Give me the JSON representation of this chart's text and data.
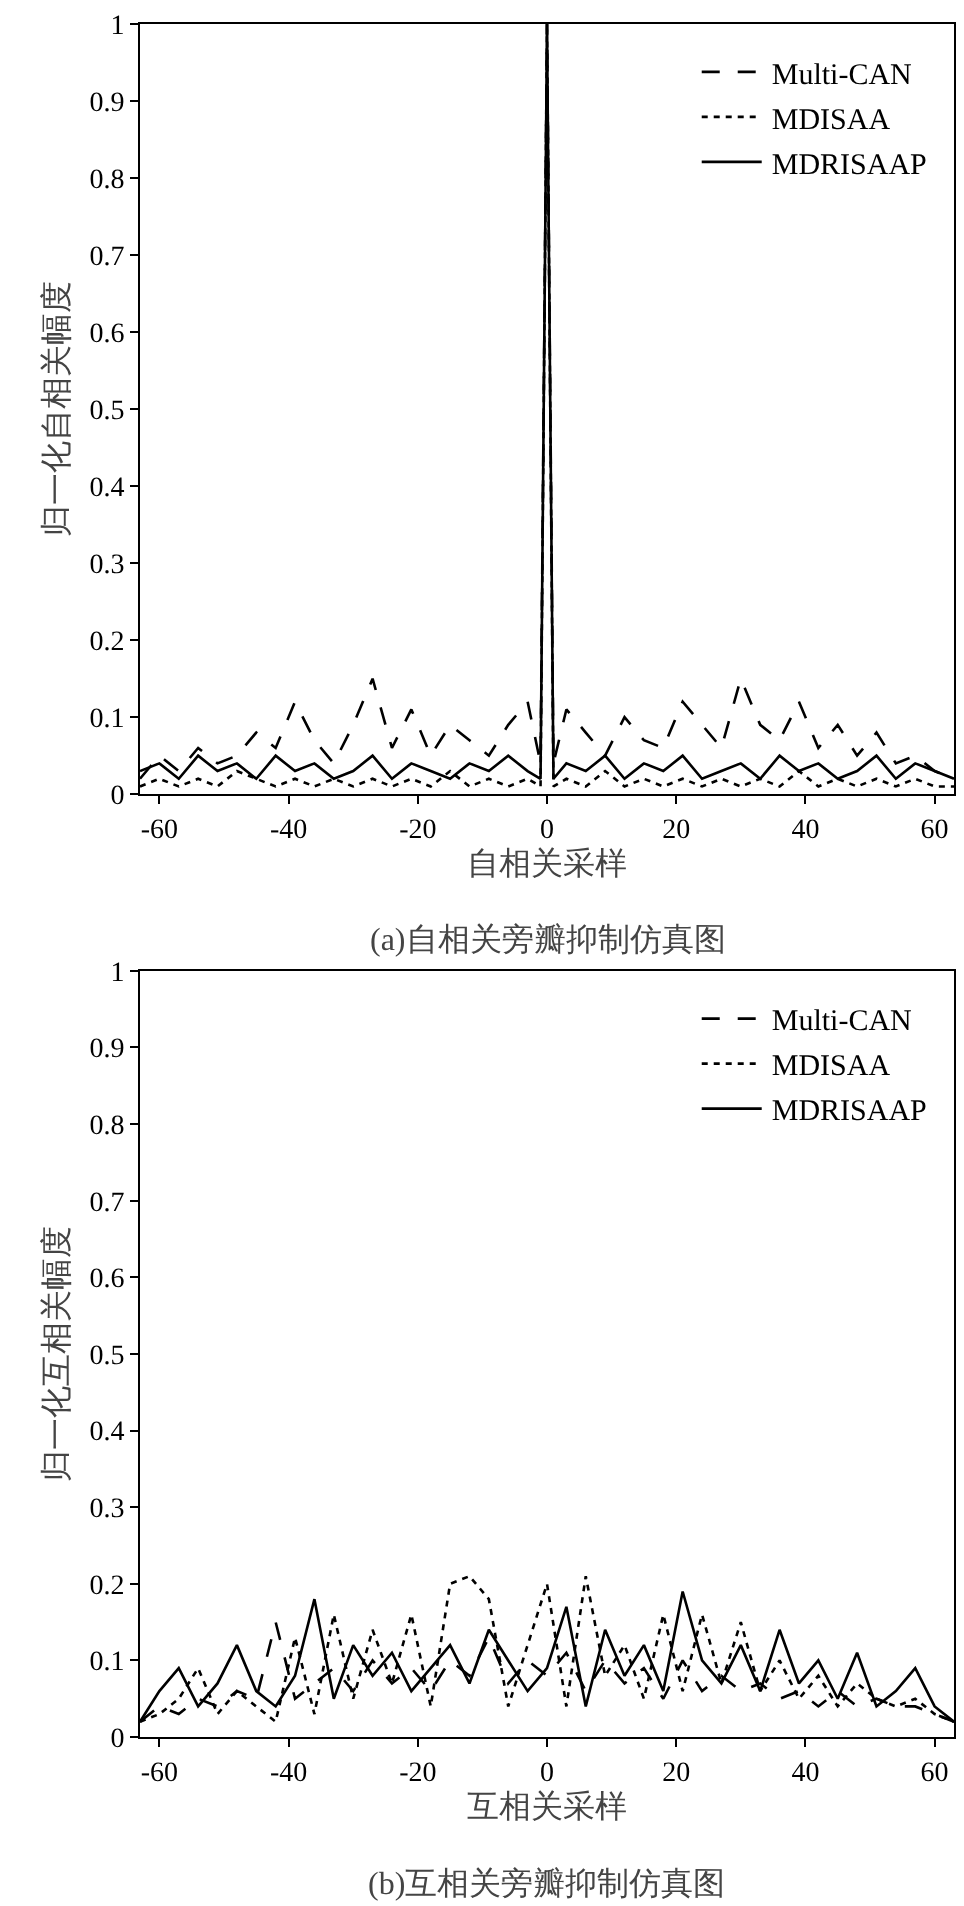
{
  "chart_data": [
    {
      "type": "line",
      "xlabel": "自相关采样",
      "ylabel": "归一化自相关幅度",
      "annotations": [
        "(a)自相关旁瓣抑制仿真图"
      ],
      "legend": "top right",
      "xlim": [
        -63,
        63
      ],
      "ylim": [
        0,
        1
      ],
      "xticks": [
        -60,
        -40,
        -20,
        0,
        20,
        40,
        60
      ],
      "yticks": [
        0,
        0.1,
        0.2,
        0.3,
        0.4,
        0.5,
        0.6,
        0.7,
        0.8,
        0.9,
        1
      ],
      "x": [
        -63,
        -60,
        -57,
        -54,
        -51,
        -48,
        -45,
        -42,
        -39,
        -36,
        -33,
        -30,
        -27,
        -24,
        -21,
        -18,
        -15,
        -12,
        -9,
        -6,
        -3,
        -1,
        0,
        1,
        3,
        6,
        9,
        12,
        15,
        18,
        21,
        24,
        27,
        30,
        33,
        36,
        39,
        42,
        45,
        48,
        51,
        54,
        57,
        60,
        63
      ],
      "series": [
        {
          "name": "Multi-CAN",
          "color": "#000000",
          "line_style": "dashed",
          "values": [
            0.02,
            0.05,
            0.03,
            0.06,
            0.04,
            0.05,
            0.08,
            0.06,
            0.12,
            0.07,
            0.04,
            0.09,
            0.15,
            0.06,
            0.11,
            0.05,
            0.09,
            0.07,
            0.05,
            0.09,
            0.12,
            0.04,
            1,
            0.04,
            0.11,
            0.08,
            0.05,
            0.1,
            0.07,
            0.06,
            0.12,
            0.09,
            0.06,
            0.15,
            0.09,
            0.07,
            0.12,
            0.06,
            0.09,
            0.05,
            0.08,
            0.04,
            0.05,
            0.03,
            0.02
          ]
        },
        {
          "name": "MDISAA",
          "color": "#000000",
          "line_style": "dotted",
          "values": [
            0.01,
            0.02,
            0.01,
            0.02,
            0.01,
            0.03,
            0.02,
            0.01,
            0.02,
            0.01,
            0.02,
            0.01,
            0.02,
            0.01,
            0.02,
            0.01,
            0.03,
            0.01,
            0.02,
            0.01,
            0.02,
            0.01,
            1,
            0.01,
            0.02,
            0.01,
            0.03,
            0.01,
            0.02,
            0.01,
            0.02,
            0.01,
            0.02,
            0.01,
            0.02,
            0.01,
            0.03,
            0.01,
            0.02,
            0.01,
            0.02,
            0.01,
            0.02,
            0.01,
            0.01
          ]
        },
        {
          "name": "MDRISAAP",
          "color": "#000000",
          "line_style": "solid",
          "values": [
            0.03,
            0.04,
            0.02,
            0.05,
            0.03,
            0.04,
            0.02,
            0.05,
            0.03,
            0.04,
            0.02,
            0.03,
            0.05,
            0.02,
            0.04,
            0.03,
            0.02,
            0.04,
            0.03,
            0.05,
            0.03,
            0.02,
            1,
            0.02,
            0.04,
            0.03,
            0.05,
            0.02,
            0.04,
            0.03,
            0.05,
            0.02,
            0.03,
            0.04,
            0.02,
            0.05,
            0.03,
            0.04,
            0.02,
            0.03,
            0.05,
            0.02,
            0.04,
            0.03,
            0.02
          ]
        }
      ]
    },
    {
      "type": "line",
      "xlabel": "互相关采样",
      "ylabel": "归一化互相关幅度",
      "annotations": [
        "(b)互相关旁瓣抑制仿真图"
      ],
      "legend": "top right",
      "xlim": [
        -63,
        63
      ],
      "ylim": [
        0,
        1
      ],
      "xticks": [
        -60,
        -40,
        -20,
        0,
        20,
        40,
        60
      ],
      "yticks": [
        0,
        0.1,
        0.2,
        0.3,
        0.4,
        0.5,
        0.6,
        0.7,
        0.8,
        0.9,
        1
      ],
      "x": [
        -63,
        -60,
        -57,
        -54,
        -51,
        -48,
        -45,
        -42,
        -39,
        -36,
        -33,
        -30,
        -27,
        -24,
        -21,
        -18,
        -15,
        -12,
        -9,
        -6,
        -3,
        0,
        3,
        6,
        9,
        12,
        15,
        18,
        21,
        24,
        27,
        30,
        33,
        36,
        39,
        42,
        45,
        48,
        51,
        54,
        57,
        60,
        63
      ],
      "series": [
        {
          "name": "Multi-CAN",
          "color": "#000000",
          "line_style": "dashed",
          "values": [
            0.02,
            0.04,
            0.03,
            0.05,
            0.04,
            0.06,
            0.05,
            0.15,
            0.05,
            0.07,
            0.09,
            0.06,
            0.1,
            0.07,
            0.09,
            0.06,
            0.1,
            0.08,
            0.13,
            0.07,
            0.1,
            0.08,
            0.11,
            0.06,
            0.1,
            0.07,
            0.09,
            0.05,
            0.1,
            0.06,
            0.08,
            0.06,
            0.07,
            0.05,
            0.06,
            0.04,
            0.06,
            0.04,
            0.05,
            0.04,
            0.04,
            0.03,
            0.02
          ]
        },
        {
          "name": "MDISAA",
          "color": "#000000",
          "line_style": "dotted",
          "values": [
            0.02,
            0.03,
            0.05,
            0.09,
            0.03,
            0.06,
            0.04,
            0.02,
            0.13,
            0.03,
            0.16,
            0.05,
            0.14,
            0.07,
            0.16,
            0.04,
            0.2,
            0.21,
            0.18,
            0.04,
            0.12,
            0.2,
            0.04,
            0.21,
            0.08,
            0.12,
            0.05,
            0.16,
            0.06,
            0.16,
            0.07,
            0.15,
            0.06,
            0.1,
            0.05,
            0.08,
            0.04,
            0.07,
            0.05,
            0.04,
            0.05,
            0.03,
            0.02
          ]
        },
        {
          "name": "MDRISAAP",
          "color": "#000000",
          "line_style": "solid",
          "values": [
            0.02,
            0.06,
            0.09,
            0.04,
            0.07,
            0.12,
            0.06,
            0.04,
            0.08,
            0.18,
            0.05,
            0.12,
            0.08,
            0.11,
            0.06,
            0.09,
            0.12,
            0.07,
            0.14,
            0.1,
            0.06,
            0.09,
            0.17,
            0.04,
            0.14,
            0.08,
            0.12,
            0.06,
            0.19,
            0.1,
            0.07,
            0.12,
            0.06,
            0.14,
            0.07,
            0.1,
            0.05,
            0.11,
            0.04,
            0.06,
            0.09,
            0.04,
            0.02
          ]
        }
      ]
    }
  ]
}
